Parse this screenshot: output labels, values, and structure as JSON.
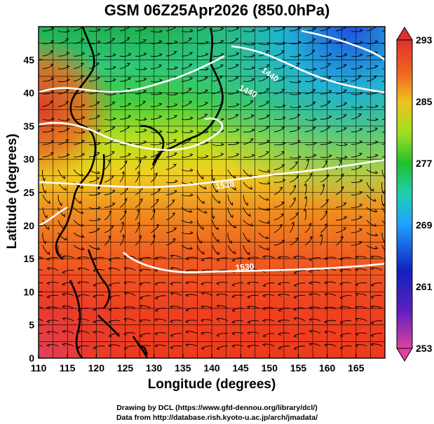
{
  "title": "GSM 06Z25Apr2026 (850.0hPa)",
  "axes": {
    "xlabel": "Longitude (degrees)",
    "ylabel": "Latitude  (degrees)",
    "xticks": [
      "110",
      "115",
      "120",
      "125",
      "130",
      "135",
      "140",
      "145",
      "150",
      "155",
      "160",
      "165"
    ],
    "yticks": [
      "0",
      "5",
      "10",
      "15",
      "20",
      "25",
      "30",
      "35",
      "40",
      "45"
    ],
    "xlim": [
      110,
      170
    ],
    "ylim": [
      0,
      50
    ]
  },
  "colorbar": {
    "labels": [
      "293",
      "285",
      "277",
      "269",
      "261",
      "253"
    ],
    "range": [
      253,
      293
    ],
    "colors": [
      "#e0409a",
      "#1020c0",
      "#2080ff",
      "#20d0c0",
      "#20c020",
      "#c0e020",
      "#f0c020",
      "#f06020",
      "#e03030"
    ]
  },
  "contour_labels": [
    "1440",
    "1440",
    "1530",
    "1530"
  ],
  "credits": {
    "line1": "Drawing by DCL (https://www.gfd-dennou.org/library/dcl/)",
    "line2": "Data from http://database.rish.kyoto-u.ac.jp/arch/jmadata/"
  }
}
